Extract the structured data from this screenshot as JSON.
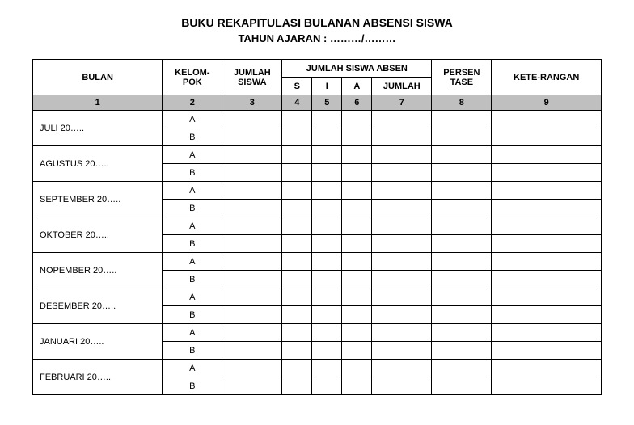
{
  "title": "BUKU REKAPITULASI BULANAN ABSENSI SISWA",
  "subtitle": "TAHUN  AJARAN : ………/………",
  "headers": {
    "bulan": "BULAN",
    "kelompok": "KELOM-POK",
    "jumlah_siswa": "JUMLAH SISWA",
    "jumlah_absen": "JUMLAH SISWA ABSEN",
    "s": "S",
    "i": "I",
    "a": "A",
    "jumlah": "JUMLAH",
    "persentase": "PERSEN TASE",
    "keterangan": "KETE-RANGAN"
  },
  "column_numbers": [
    "1",
    "2",
    "3",
    "4",
    "5",
    "6",
    "7",
    "8",
    "9"
  ],
  "groups": [
    "A",
    "B"
  ],
  "months": [
    "JULI 20…..",
    "AGUSTUS 20…..",
    "SEPTEMBER 20…..",
    "OKTOBER 20…..",
    "NOPEMBER 20…..",
    "DESEMBER 20…..",
    "JANUARI 20…..",
    "FEBRUARI 20….."
  ],
  "styling": {
    "background_color": "#ffffff",
    "header_number_bg": "#bfbfbf",
    "border_color": "#000000",
    "title_fontsize": 14,
    "subtitle_fontsize": 13,
    "cell_fontsize": 11,
    "font_family": "Arial"
  }
}
